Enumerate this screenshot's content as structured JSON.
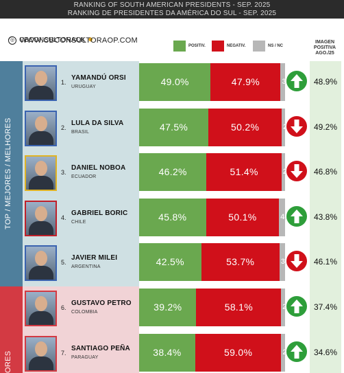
{
  "header": {
    "title_en": "RANKING OF SOUTH AMERICAN PRESIDENTS - SEP. 2025",
    "title_pt": "RANKING DE PRESIDENTES DA AMÉRICA DO SUL - SEP. 2025"
  },
  "brand": {
    "handle": "CBCONSULTORAOK",
    "url": "WWW.CBCONSULTORAOP.COM"
  },
  "legend": {
    "positive": "POSITIV.",
    "negative": "NEGATIV.",
    "ns": "NS / NC"
  },
  "imagen_header": "IMAGEN POSITIVA AGO./25",
  "sections": {
    "top": "TOP / MEJORES / MELHORES",
    "bottom": "ORES"
  },
  "colors": {
    "positive": "#6aa84f",
    "negative": "#d0101a",
    "ns": "#b7b7b7",
    "trend_up": "#2e9e3a",
    "trend_down": "#d0101a"
  },
  "chart_data": {
    "type": "bar",
    "stacked": true,
    "orientation": "horizontal",
    "xlim": [
      0,
      100
    ],
    "categories": [
      "YAMANDÚ ORSI",
      "LULA DA SILVA",
      "DANIEL NOBOA",
      "GABRIEL BORIC",
      "JAVIER MILEI",
      "GUSTAVO PETRO",
      "SANTIAGO PEÑA"
    ],
    "series": [
      {
        "name": "POSITIV.",
        "values": [
          49.0,
          47.5,
          46.2,
          45.8,
          42.5,
          39.2,
          38.4
        ]
      },
      {
        "name": "NEGATIV.",
        "values": [
          47.9,
          50.2,
          51.4,
          50.1,
          53.7,
          58.1,
          59.0
        ]
      },
      {
        "name": "NS / NC",
        "values": [
          3.1,
          2.3,
          2.4,
          4.1,
          3.8,
          2.7,
          2.6
        ]
      }
    ]
  },
  "rows": [
    {
      "rank": "1.",
      "name": "YAMANDÚ ORSI",
      "country": "URUGUAY",
      "positive": "49.0%",
      "negative": "47.9%",
      "ns": "3.1",
      "trend": "up",
      "trend_icon": "arrow-up-icon",
      "prev": "48.9%"
    },
    {
      "rank": "2.",
      "name": "LULA DA SILVA",
      "country": "BRASIL",
      "positive": "47.5%",
      "negative": "50.2%",
      "ns": "2.3",
      "trend": "down",
      "trend_icon": "arrow-down-icon",
      "prev": "49.2%"
    },
    {
      "rank": "3.",
      "name": "DANIEL NOBOA",
      "country": "ECUADOR",
      "positive": "46.2%",
      "negative": "51.4%",
      "ns": "2.4",
      "trend": "down",
      "trend_icon": "arrow-down-icon",
      "prev": "46.8%"
    },
    {
      "rank": "4.",
      "name": "GABRIEL BORIC",
      "country": "CHILE",
      "positive": "45.8%",
      "negative": "50.1%",
      "ns": "4.1",
      "trend": "up",
      "trend_icon": "arrow-up-icon",
      "prev": "43.8%"
    },
    {
      "rank": "5.",
      "name": "JAVIER MILEI",
      "country": "ARGENTINA",
      "positive": "42.5%",
      "negative": "53.7%",
      "ns": "3.8",
      "trend": "down",
      "trend_icon": "arrow-down-icon",
      "prev": "46.1%"
    },
    {
      "rank": "6.",
      "name": "GUSTAVO PETRO",
      "country": "COLOMBIA",
      "positive": "39.2%",
      "negative": "58.1%",
      "ns": "2.7",
      "trend": "up",
      "trend_icon": "arrow-up-icon",
      "prev": "37.4%"
    },
    {
      "rank": "7.",
      "name": "SANTIAGO PEÑA",
      "country": "PARAGUAY",
      "positive": "38.4%",
      "negative": "59.0%",
      "ns": "2.6",
      "trend": "up",
      "trend_icon": "arrow-up-icon",
      "prev": "34.6%"
    }
  ]
}
